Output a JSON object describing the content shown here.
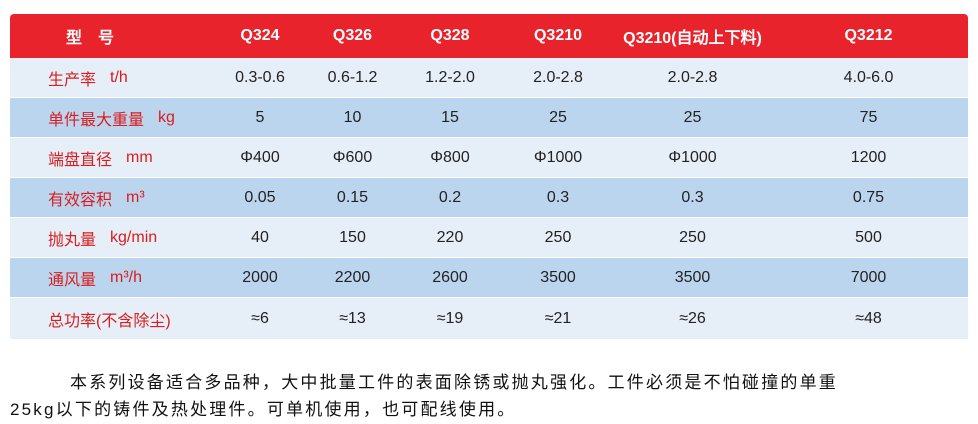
{
  "table": {
    "header": [
      "型　号",
      "Q324",
      "Q326",
      "Q328",
      "Q3210",
      "Q3210(自动上下料)",
      "Q3212"
    ],
    "rows": [
      {
        "label": "生产率",
        "unit": "t/h",
        "values": [
          "0.3-0.6",
          "0.6-1.2",
          "1.2-2.0",
          "2.0-2.8",
          "2.0-2.8",
          "4.0-6.0"
        ]
      },
      {
        "label": "单件最大重量",
        "unit": "kg",
        "values": [
          "5",
          "10",
          "15",
          "25",
          "25",
          "75"
        ]
      },
      {
        "label": "端盘直径",
        "unit": "mm",
        "values": [
          "Φ400",
          "Φ600",
          "Φ800",
          "Φ1000",
          "Φ1000",
          "1200"
        ]
      },
      {
        "label": "有效容积",
        "unit": "m³",
        "values": [
          "0.05",
          "0.15",
          "0.2",
          "0.3",
          "0.3",
          "0.75"
        ]
      },
      {
        "label": "抛丸量",
        "unit": "kg/min",
        "values": [
          "40",
          "150",
          "220",
          "250",
          "250",
          "500"
        ]
      },
      {
        "label": "通风量",
        "unit": "m³/h",
        "values": [
          "2000",
          "2200",
          "2600",
          "3500",
          "3500",
          "7000"
        ]
      },
      {
        "label": "总功率(不含除尘)",
        "values": [
          "≈6",
          "≈13",
          "≈19",
          "≈21",
          "≈26",
          "≈48"
        ]
      }
    ]
  },
  "description": {
    "lines": [
      "本系列设备适合多品种，大中批量工件的表面除锈或抛丸强化。工件必须是不怕碰撞的单重",
      "25kg以下的铸件及热处理件。可单机使用，也可配线使用。"
    ]
  }
}
